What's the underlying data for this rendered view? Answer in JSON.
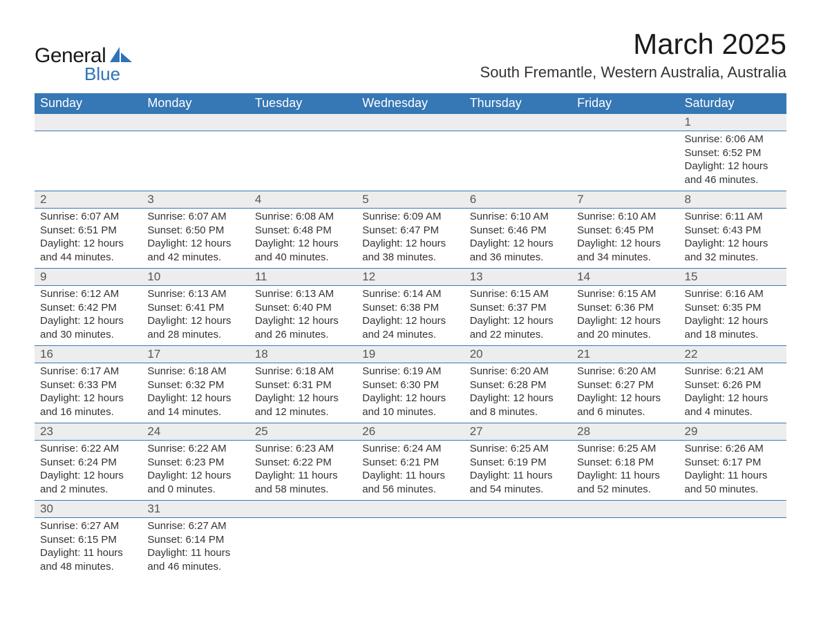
{
  "logo": {
    "word1": "General",
    "word2": "Blue",
    "shape_color": "#2e72b8"
  },
  "title": "March 2025",
  "location": "South Fremantle, Western Australia, Australia",
  "colors": {
    "header_bg": "#3677b5",
    "header_text": "#ffffff",
    "daynum_bg": "#ededed",
    "text": "#333333",
    "divider": "#3677b5"
  },
  "day_headers": [
    "Sunday",
    "Monday",
    "Tuesday",
    "Wednesday",
    "Thursday",
    "Friday",
    "Saturday"
  ],
  "weeks": [
    [
      {
        "n": "",
        "sunrise": "",
        "sunset": "",
        "daylight": ""
      },
      {
        "n": "",
        "sunrise": "",
        "sunset": "",
        "daylight": ""
      },
      {
        "n": "",
        "sunrise": "",
        "sunset": "",
        "daylight": ""
      },
      {
        "n": "",
        "sunrise": "",
        "sunset": "",
        "daylight": ""
      },
      {
        "n": "",
        "sunrise": "",
        "sunset": "",
        "daylight": ""
      },
      {
        "n": "",
        "sunrise": "",
        "sunset": "",
        "daylight": ""
      },
      {
        "n": "1",
        "sunrise": "Sunrise: 6:06 AM",
        "sunset": "Sunset: 6:52 PM",
        "daylight": "Daylight: 12 hours and 46 minutes."
      }
    ],
    [
      {
        "n": "2",
        "sunrise": "Sunrise: 6:07 AM",
        "sunset": "Sunset: 6:51 PM",
        "daylight": "Daylight: 12 hours and 44 minutes."
      },
      {
        "n": "3",
        "sunrise": "Sunrise: 6:07 AM",
        "sunset": "Sunset: 6:50 PM",
        "daylight": "Daylight: 12 hours and 42 minutes."
      },
      {
        "n": "4",
        "sunrise": "Sunrise: 6:08 AM",
        "sunset": "Sunset: 6:48 PM",
        "daylight": "Daylight: 12 hours and 40 minutes."
      },
      {
        "n": "5",
        "sunrise": "Sunrise: 6:09 AM",
        "sunset": "Sunset: 6:47 PM",
        "daylight": "Daylight: 12 hours and 38 minutes."
      },
      {
        "n": "6",
        "sunrise": "Sunrise: 6:10 AM",
        "sunset": "Sunset: 6:46 PM",
        "daylight": "Daylight: 12 hours and 36 minutes."
      },
      {
        "n": "7",
        "sunrise": "Sunrise: 6:10 AM",
        "sunset": "Sunset: 6:45 PM",
        "daylight": "Daylight: 12 hours and 34 minutes."
      },
      {
        "n": "8",
        "sunrise": "Sunrise: 6:11 AM",
        "sunset": "Sunset: 6:43 PM",
        "daylight": "Daylight: 12 hours and 32 minutes."
      }
    ],
    [
      {
        "n": "9",
        "sunrise": "Sunrise: 6:12 AM",
        "sunset": "Sunset: 6:42 PM",
        "daylight": "Daylight: 12 hours and 30 minutes."
      },
      {
        "n": "10",
        "sunrise": "Sunrise: 6:13 AM",
        "sunset": "Sunset: 6:41 PM",
        "daylight": "Daylight: 12 hours and 28 minutes."
      },
      {
        "n": "11",
        "sunrise": "Sunrise: 6:13 AM",
        "sunset": "Sunset: 6:40 PM",
        "daylight": "Daylight: 12 hours and 26 minutes."
      },
      {
        "n": "12",
        "sunrise": "Sunrise: 6:14 AM",
        "sunset": "Sunset: 6:38 PM",
        "daylight": "Daylight: 12 hours and 24 minutes."
      },
      {
        "n": "13",
        "sunrise": "Sunrise: 6:15 AM",
        "sunset": "Sunset: 6:37 PM",
        "daylight": "Daylight: 12 hours and 22 minutes."
      },
      {
        "n": "14",
        "sunrise": "Sunrise: 6:15 AM",
        "sunset": "Sunset: 6:36 PM",
        "daylight": "Daylight: 12 hours and 20 minutes."
      },
      {
        "n": "15",
        "sunrise": "Sunrise: 6:16 AM",
        "sunset": "Sunset: 6:35 PM",
        "daylight": "Daylight: 12 hours and 18 minutes."
      }
    ],
    [
      {
        "n": "16",
        "sunrise": "Sunrise: 6:17 AM",
        "sunset": "Sunset: 6:33 PM",
        "daylight": "Daylight: 12 hours and 16 minutes."
      },
      {
        "n": "17",
        "sunrise": "Sunrise: 6:18 AM",
        "sunset": "Sunset: 6:32 PM",
        "daylight": "Daylight: 12 hours and 14 minutes."
      },
      {
        "n": "18",
        "sunrise": "Sunrise: 6:18 AM",
        "sunset": "Sunset: 6:31 PM",
        "daylight": "Daylight: 12 hours and 12 minutes."
      },
      {
        "n": "19",
        "sunrise": "Sunrise: 6:19 AM",
        "sunset": "Sunset: 6:30 PM",
        "daylight": "Daylight: 12 hours and 10 minutes."
      },
      {
        "n": "20",
        "sunrise": "Sunrise: 6:20 AM",
        "sunset": "Sunset: 6:28 PM",
        "daylight": "Daylight: 12 hours and 8 minutes."
      },
      {
        "n": "21",
        "sunrise": "Sunrise: 6:20 AM",
        "sunset": "Sunset: 6:27 PM",
        "daylight": "Daylight: 12 hours and 6 minutes."
      },
      {
        "n": "22",
        "sunrise": "Sunrise: 6:21 AM",
        "sunset": "Sunset: 6:26 PM",
        "daylight": "Daylight: 12 hours and 4 minutes."
      }
    ],
    [
      {
        "n": "23",
        "sunrise": "Sunrise: 6:22 AM",
        "sunset": "Sunset: 6:24 PM",
        "daylight": "Daylight: 12 hours and 2 minutes."
      },
      {
        "n": "24",
        "sunrise": "Sunrise: 6:22 AM",
        "sunset": "Sunset: 6:23 PM",
        "daylight": "Daylight: 12 hours and 0 minutes."
      },
      {
        "n": "25",
        "sunrise": "Sunrise: 6:23 AM",
        "sunset": "Sunset: 6:22 PM",
        "daylight": "Daylight: 11 hours and 58 minutes."
      },
      {
        "n": "26",
        "sunrise": "Sunrise: 6:24 AM",
        "sunset": "Sunset: 6:21 PM",
        "daylight": "Daylight: 11 hours and 56 minutes."
      },
      {
        "n": "27",
        "sunrise": "Sunrise: 6:25 AM",
        "sunset": "Sunset: 6:19 PM",
        "daylight": "Daylight: 11 hours and 54 minutes."
      },
      {
        "n": "28",
        "sunrise": "Sunrise: 6:25 AM",
        "sunset": "Sunset: 6:18 PM",
        "daylight": "Daylight: 11 hours and 52 minutes."
      },
      {
        "n": "29",
        "sunrise": "Sunrise: 6:26 AM",
        "sunset": "Sunset: 6:17 PM",
        "daylight": "Daylight: 11 hours and 50 minutes."
      }
    ],
    [
      {
        "n": "30",
        "sunrise": "Sunrise: 6:27 AM",
        "sunset": "Sunset: 6:15 PM",
        "daylight": "Daylight: 11 hours and 48 minutes."
      },
      {
        "n": "31",
        "sunrise": "Sunrise: 6:27 AM",
        "sunset": "Sunset: 6:14 PM",
        "daylight": "Daylight: 11 hours and 46 minutes."
      },
      {
        "n": "",
        "sunrise": "",
        "sunset": "",
        "daylight": ""
      },
      {
        "n": "",
        "sunrise": "",
        "sunset": "",
        "daylight": ""
      },
      {
        "n": "",
        "sunrise": "",
        "sunset": "",
        "daylight": ""
      },
      {
        "n": "",
        "sunrise": "",
        "sunset": "",
        "daylight": ""
      },
      {
        "n": "",
        "sunrise": "",
        "sunset": "",
        "daylight": ""
      }
    ]
  ]
}
